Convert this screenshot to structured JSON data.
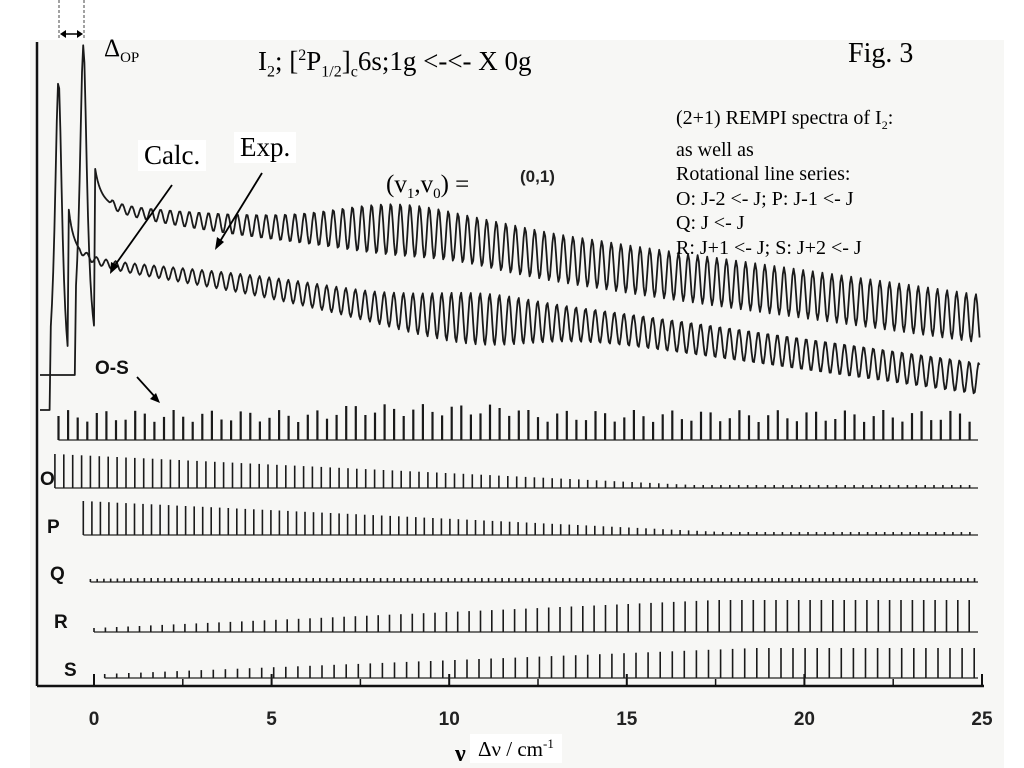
{
  "figure": {
    "fig_label": "Fig. 3",
    "delta_label": "Δ",
    "delta_sub": "OP",
    "title": {
      "p1": "I",
      "p1_sub": "2",
      "p2": "; [",
      "p2_sup": "2",
      "p3": "P",
      "p3_sub": "1/2",
      "p4": "]",
      "p4_sub": "c",
      "p5": "6s;1g <-<- X 0g"
    },
    "calc_label": "Calc.",
    "exp_label": "Exp.",
    "band": {
      "p1": "(v",
      "p1_sub": "1",
      "p2": ",v",
      "p2_sub": "0",
      "p3": ") =",
      "value": "(0,1)"
    },
    "info": {
      "line1": "(2+1) REMPI spectra of I",
      "line1_sub": "2",
      "line1_end": ":",
      "line2": "as well as",
      "line3": "Rotational line series:",
      "line4": "O: J-2 <- J;  P: J-1 <- J",
      "line5": "Q: J <- J",
      "line6": "R: J+1 <- J; S: J+2 <- J"
    },
    "x_axis_label": "Δν / cm",
    "x_axis_label_sup": "-1",
    "x_axis_symbol": "ν"
  },
  "chart_data": {
    "type": "line",
    "title": "",
    "xlabel": "Δν / cm-1",
    "ylabel": "",
    "xlim": [
      -1,
      25
    ],
    "x_ticks": [
      "0",
      "5",
      "10",
      "15",
      "20",
      "25"
    ],
    "x_tick_values": [
      0,
      5,
      10,
      15,
      20,
      25
    ],
    "curves": [
      {
        "name": "Exp.",
        "kind": "spectrum",
        "peak_x": -0.3,
        "period": 0.27
      },
      {
        "name": "Calc.",
        "kind": "spectrum",
        "peak_x": -1.0,
        "period": 0.27
      }
    ],
    "stick_series": [
      {
        "name": "O-S",
        "start": -1.0,
        "spacing": 0.27
      },
      {
        "name": "O",
        "start": -1.1,
        "spacing": 0.25
      },
      {
        "name": "P",
        "start": -0.3,
        "spacing": 0.24
      },
      {
        "name": "Q",
        "start": -0.1,
        "spacing": 0.19
      },
      {
        "name": "R",
        "start": 0.0,
        "spacing": 0.32
      },
      {
        "name": "S",
        "start": 0.3,
        "spacing": 0.34
      }
    ]
  }
}
